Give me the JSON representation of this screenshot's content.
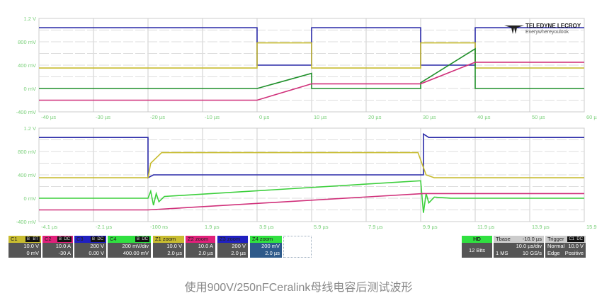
{
  "chart_data": [
    {
      "type": "line",
      "title": "",
      "grid": true,
      "x_unit": "µs",
      "xlim": [
        -40,
        60
      ],
      "xticks": [
        "-40 µs",
        "-30 µs",
        "-20 µs",
        "-10 µs",
        "0 µs",
        "10 µs",
        "20 µs",
        "30 µs",
        "40 µs",
        "50 µs",
        "60 µs"
      ],
      "ylim": [
        -0.4,
        1.2
      ],
      "yticks": [
        {
          "v": 1.2,
          "label": "1.2 V"
        },
        {
          "v": 0.8,
          "label": "800 mV"
        },
        {
          "v": 0.4,
          "label": "400 mV"
        },
        {
          "v": 0,
          "label": "0 mV"
        },
        {
          "v": -0.4,
          "label": "-400 mV"
        }
      ],
      "series": [
        {
          "channel": "C3",
          "color": "#2a2aa8",
          "x": [
            -40,
            0,
            0,
            10,
            10,
            30,
            30,
            40,
            40,
            60
          ],
          "y": [
            1.04,
            1.04,
            0.4,
            0.4,
            1.04,
            1.04,
            0.4,
            0.4,
            1.04,
            1.04
          ]
        },
        {
          "channel": "C1",
          "color": "#c8bc30",
          "x": [
            -40,
            0,
            0,
            10,
            10,
            30,
            30,
            40,
            40,
            60
          ],
          "y": [
            0.35,
            0.35,
            0.78,
            0.78,
            0.35,
            0.35,
            0.78,
            0.78,
            0.35,
            0.35
          ]
        },
        {
          "channel": "C4",
          "color": "#1f8f2a",
          "x": [
            -40,
            0,
            10,
            10,
            30,
            30,
            40,
            40,
            60
          ],
          "y": [
            0,
            0,
            0.26,
            0,
            0,
            0.1,
            0.68,
            0,
            0
          ]
        },
        {
          "channel": "C2",
          "color": "#d0307a",
          "x": [
            -40,
            0,
            10,
            30,
            40,
            60
          ],
          "y": [
            -0.2,
            -0.2,
            0.08,
            0.08,
            0.45,
            0.45
          ]
        }
      ]
    },
    {
      "type": "line",
      "title": "",
      "grid": true,
      "x_unit": "µs",
      "xlim": [
        -4.1,
        15.9
      ],
      "xticks": [
        "-4.1 µs",
        "-2.1 µs",
        "-100 ns",
        "1.9 µs",
        "3.9 µs",
        "5.9 µs",
        "7.9 µs",
        "9.9 µs",
        "11.9 µs",
        "13.9 µs",
        "15.9 µs"
      ],
      "ylim": [
        -0.4,
        1.2
      ],
      "yticks": [
        {
          "v": 1.2,
          "label": "1.2 V"
        },
        {
          "v": 0.8,
          "label": "800 mV"
        },
        {
          "v": 0.4,
          "label": "400 mV"
        },
        {
          "v": 0,
          "label": "0 mV"
        },
        {
          "v": -0.4,
          "label": "-400 mV"
        }
      ],
      "series": [
        {
          "channel": "C3",
          "color": "#2a2aa8",
          "x": [
            -4.1,
            -0.1,
            -0.1,
            0.1,
            10.0,
            10.0,
            10.2,
            15.9
          ],
          "y": [
            1.04,
            1.04,
            0.35,
            0.4,
            0.4,
            1.1,
            1.04,
            1.04
          ]
        },
        {
          "channel": "C1",
          "color": "#c8bc30",
          "x": [
            -4.1,
            -0.1,
            0.0,
            0.4,
            9.8,
            10.1,
            10.4,
            15.9
          ],
          "y": [
            0.35,
            0.35,
            0.6,
            0.78,
            0.78,
            0.4,
            0.35,
            0.35
          ]
        },
        {
          "channel": "C4",
          "color": "#3ccf3c",
          "x": [
            -4.1,
            -0.1,
            0.0,
            0.1,
            0.2,
            0.3,
            0.5,
            9.9,
            10.0,
            10.1,
            10.2,
            10.4,
            11,
            15.9
          ],
          "y": [
            0,
            0,
            0.12,
            -0.12,
            0.08,
            -0.06,
            0.03,
            0.3,
            -0.25,
            0.08,
            -0.08,
            0.02,
            0.0,
            0.0
          ]
        },
        {
          "channel": "C2",
          "color": "#d0307a",
          "x": [
            -4.1,
            -0.1,
            10.0,
            15.9
          ],
          "y": [
            -0.2,
            -0.2,
            0.08,
            0.08
          ]
        }
      ]
    }
  ],
  "logo": {
    "brand": "TELEDYNE LECROY",
    "tagline": "Everywhereyoulook"
  },
  "channels": [
    {
      "name": "C1",
      "color": "#c8bc30",
      "badges": [
        "B",
        "BT"
      ],
      "line1": "10.0 V",
      "line2": "0 mV"
    },
    {
      "name": "C2",
      "color": "#e0207a",
      "badges": [
        "B",
        "DC"
      ],
      "line1": "10.0 A",
      "line2": "-30 A"
    },
    {
      "name": "C3",
      "color": "#2020c0",
      "badges": [
        "B",
        "DC"
      ],
      "line1": "200 V",
      "line2": "0.00 V"
    },
    {
      "name": "C4",
      "color": "#30e040",
      "badges": [
        "B",
        "DC"
      ],
      "line1": "200 mV/div",
      "line2": "400.00 mV"
    },
    {
      "name": "Z1 zoom",
      "color": "#c8bc30",
      "line1": "10.0 V",
      "line2": "2.0 µs"
    },
    {
      "name": "Z2 zoom",
      "color": "#e0207a",
      "line1": "10.0 A",
      "line2": "2.0 µs"
    },
    {
      "name": "Z3 zoom",
      "color": "#2020c0",
      "line1": "200 V",
      "line2": "2.0 µs"
    },
    {
      "name": "Z4 zoom",
      "color": "#30e040",
      "line1": "200 mV",
      "line2": "2.0 µs"
    }
  ],
  "hd": {
    "label": "HD",
    "bits": "12 Bits"
  },
  "timebase": {
    "label": "Tbase",
    "offset": "-10.0 µs",
    "scale": "10.0 µs/div",
    "memory": "1 MS",
    "rate": "10 GS/s"
  },
  "trigger": {
    "label": "Trigger",
    "badges": [
      "C1",
      "DC"
    ],
    "mode": "Normal",
    "level": "10.0 V",
    "type": "Edge",
    "slope": "Positive"
  },
  "caption": "使用900V/250nFCeralink母线电容后测试波形"
}
